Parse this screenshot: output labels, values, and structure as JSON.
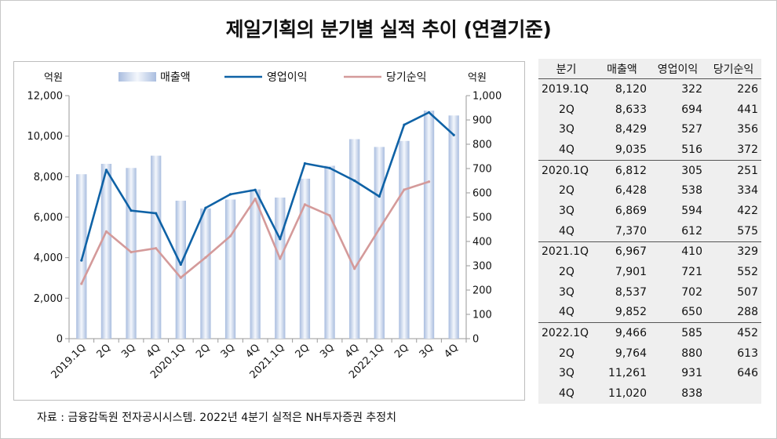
{
  "title": "제일기획의 분기별 실적 추이 (연결기준)",
  "source": "자료 : 금융감독원 전자공시시스템. 2022년 4분기 실적은 NH투자증권 추정치",
  "colors": {
    "bar": "#a9bddf",
    "op": "#0f62a6",
    "net": "#d49a9a"
  },
  "chart_data": {
    "type": "bar",
    "categories": [
      "2019.1Q",
      "2Q",
      "3Q",
      "4Q",
      "2020.1Q",
      "2Q",
      "3Q",
      "4Q",
      "2021.1Q",
      "2Q",
      "3Q",
      "4Q",
      "2022.1Q",
      "2Q",
      "3Q",
      "4Q"
    ],
    "left_unit": "억원",
    "right_unit": "억원",
    "left_ylim": [
      0,
      12000
    ],
    "right_ylim": [
      0,
      1000
    ],
    "left_ticks": [
      "0",
      "2,000",
      "4,000",
      "6,000",
      "8,000",
      "10,000",
      "12,000"
    ],
    "right_ticks": [
      "0",
      "100",
      "200",
      "300",
      "400",
      "500",
      "600",
      "700",
      "800",
      "900",
      "1,000"
    ],
    "grid": false,
    "legend_position": "top",
    "series": [
      {
        "name": "매출액",
        "type": "bar",
        "axis": "left",
        "values": [
          8120,
          8633,
          8429,
          9035,
          6812,
          6428,
          6869,
          7370,
          6967,
          7901,
          8537,
          9852,
          9466,
          9764,
          11261,
          11020
        ]
      },
      {
        "name": "영업이익",
        "type": "line",
        "axis": "right",
        "values": [
          322,
          694,
          527,
          516,
          305,
          538,
          594,
          612,
          410,
          721,
          702,
          650,
          585,
          880,
          931,
          838
        ]
      },
      {
        "name": "당기순익",
        "type": "line",
        "axis": "right",
        "values": [
          226,
          441,
          356,
          372,
          251,
          334,
          422,
          575,
          329,
          552,
          507,
          288,
          452,
          613,
          646,
          null
        ]
      }
    ]
  },
  "table": {
    "headers": [
      "분기",
      "매출액",
      "영업이익",
      "당기순익"
    ],
    "rows": [
      [
        "2019.1Q",
        "8,120",
        "322",
        "226"
      ],
      [
        "2Q",
        "8,633",
        "694",
        "441"
      ],
      [
        "3Q",
        "8,429",
        "527",
        "356"
      ],
      [
        "4Q",
        "9,035",
        "516",
        "372"
      ],
      [
        "2020.1Q",
        "6,812",
        "305",
        "251"
      ],
      [
        "2Q",
        "6,428",
        "538",
        "334"
      ],
      [
        "3Q",
        "6,869",
        "594",
        "422"
      ],
      [
        "4Q",
        "7,370",
        "612",
        "575"
      ],
      [
        "2021.1Q",
        "6,967",
        "410",
        "329"
      ],
      [
        "2Q",
        "7,901",
        "721",
        "552"
      ],
      [
        "3Q",
        "8,537",
        "702",
        "507"
      ],
      [
        "4Q",
        "9,852",
        "650",
        "288"
      ],
      [
        "2022.1Q",
        "9,466",
        "585",
        "452"
      ],
      [
        "2Q",
        "9,764",
        "880",
        "613"
      ],
      [
        "3Q",
        "11,261",
        "931",
        "646"
      ],
      [
        "4Q",
        "11,020",
        "838",
        ""
      ]
    ]
  }
}
